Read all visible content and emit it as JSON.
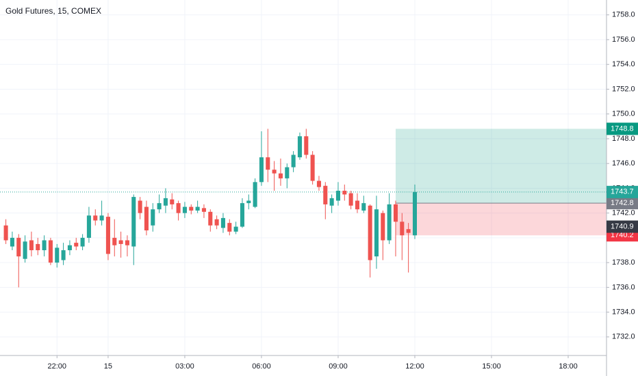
{
  "chart_data": {
    "type": "candlestick",
    "title": "Gold Futures, 15, COMEX",
    "x": [
      -4,
      -3.75,
      -3.5,
      -3.25,
      -3,
      -2.75,
      -2.5,
      -2.25,
      -2,
      -1.75,
      -1.5,
      -1.25,
      -1,
      -0.75,
      -0.5,
      -0.25,
      0,
      0.25,
      0.5,
      0.75,
      1,
      1.25,
      1.5,
      1.75,
      2,
      2.25,
      2.5,
      2.75,
      3,
      3.25,
      3.5,
      3.75,
      4,
      4.25,
      4.5,
      4.75,
      5,
      5.25,
      5.5,
      5.75,
      6,
      6.25,
      6.5,
      6.75,
      7,
      7.25,
      7.5,
      7.75,
      8,
      8.25,
      8.5,
      8.75,
      9,
      9.25,
      9.5,
      9.75,
      10,
      10.25,
      10.5,
      10.75,
      11,
      11.25,
      11.5,
      11.75,
      12
    ],
    "open": [
      1741,
      1739.3,
      1740,
      1738.3,
      1739.8,
      1739.5,
      1739,
      1739.8,
      1738,
      1738.2,
      1739,
      1739.6,
      1739.3,
      1740,
      1741.8,
      1741.4,
      1741.7,
      1740,
      1739.8,
      1739.8,
      1739.3,
      1743,
      1742.5,
      1741,
      1742.3,
      1742.6,
      1743.1,
      1742.8,
      1742,
      1742.5,
      1742.2,
      1742.4,
      1742.1,
      1741.5,
      1740.8,
      1741.2,
      1740.5,
      1740.9,
      1742.8,
      1742.5,
      1744.5,
      1746.5,
      1745.5,
      1745.2,
      1744.8,
      1745.7,
      1746.5,
      1748.2,
      1746.7,
      1744.6,
      1744.2,
      1742.6,
      1743,
      1743.8,
      1743.6,
      1743,
      1742.2,
      1742.6,
      1738.5,
      1742,
      1739.8,
      1742.7,
      1741.3,
      1740.7,
      1740.2
    ],
    "high": [
      1741.5,
      1740.5,
      1740.3,
      1740.2,
      1740.5,
      1740,
      1740.2,
      1740,
      1739.5,
      1739.6,
      1739.8,
      1740,
      1740.3,
      1742.5,
      1742.3,
      1743,
      1742,
      1741.5,
      1740.5,
      1740.2,
      1743.5,
      1743.3,
      1743,
      1742.8,
      1743.5,
      1744,
      1743.6,
      1743,
      1742.9,
      1742.7,
      1743,
      1742.7,
      1742.3,
      1741.8,
      1742,
      1741.5,
      1741.3,
      1743.2,
      1743.5,
      1744.8,
      1748.6,
      1748.8,
      1746.2,
      1746.4,
      1746,
      1747,
      1748.5,
      1748.8,
      1747,
      1745,
      1744.5,
      1743.5,
      1744.5,
      1744.3,
      1743.8,
      1743.6,
      1743.4,
      1742.7,
      1743.4,
      1742.2,
      1743.6,
      1743,
      1742,
      1741.2,
      1744.3
    ],
    "low": [
      1739.5,
      1739,
      1736,
      1738,
      1738.5,
      1738.6,
      1738.5,
      1737.8,
      1737.6,
      1737.8,
      1738.6,
      1739,
      1739,
      1739.6,
      1741,
      1741,
      1738.2,
      1738.5,
      1738.4,
      1738.5,
      1737.8,
      1741.5,
      1740.2,
      1740.5,
      1742,
      1742,
      1742.3,
      1741.4,
      1741.6,
      1741.9,
      1742,
      1741.6,
      1740.5,
      1740.7,
      1740.4,
      1740.2,
      1740.3,
      1740.8,
      1742.3,
      1742.4,
      1744.2,
      1744.5,
      1743.8,
      1744.2,
      1744,
      1745.3,
      1746.3,
      1746.4,
      1744.3,
      1743.8,
      1741.5,
      1742,
      1742.6,
      1743,
      1742.3,
      1742,
      1742,
      1736.8,
      1737.5,
      1738.2,
      1739.5,
      1738.5,
      1738.2,
      1737.2,
      1739.9
    ],
    "close": [
      1739.8,
      1740,
      1738.5,
      1739.7,
      1739,
      1739,
      1739.8,
      1738,
      1739.2,
      1739,
      1739.4,
      1739.3,
      1740,
      1741.8,
      1741.4,
      1741.8,
      1738.7,
      1739.4,
      1739.5,
      1739.4,
      1743.3,
      1742,
      1740.6,
      1742.3,
      1742.8,
      1743.2,
      1742.7,
      1742,
      1742.5,
      1742.2,
      1742.5,
      1742.1,
      1741,
      1741,
      1741.6,
      1740.5,
      1740.9,
      1742.8,
      1743,
      1744.5,
      1746.5,
      1745.5,
      1745.2,
      1744.8,
      1745.7,
      1746.7,
      1748.2,
      1746.7,
      1744.6,
      1744.1,
      1742.7,
      1743.2,
      1743.8,
      1743.5,
      1742.6,
      1742.3,
      1742.8,
      1738.2,
      1742.3,
      1739.8,
      1742.7,
      1741.3,
      1740.2,
      1740.4,
      1743.7
    ],
    "up_color": "#26a69a",
    "down_color": "#ef5350",
    "position": {
      "start_x": 11.25,
      "entry": 1742.8,
      "target": 1748.8,
      "stop": 1740.2,
      "entry_color": "#787b86",
      "target_color": "#089981",
      "stop_color": "#f23645"
    },
    "price_labels": [
      {
        "value": 1740.9,
        "color": "#363a45"
      }
    ],
    "xlim": [
      -4.23,
      19.5
    ],
    "ylim": [
      1730.5,
      1759.2
    ],
    "xticks": [
      {
        "value": -2,
        "label": "22:00"
      },
      {
        "value": 0,
        "label": "15"
      },
      {
        "value": 3,
        "label": "03:00"
      },
      {
        "value": 6,
        "label": "06:00"
      },
      {
        "value": 9,
        "label": "09:00"
      },
      {
        "value": 12,
        "label": "12:00"
      },
      {
        "value": 15,
        "label": "15:00"
      },
      {
        "value": 18,
        "label": "18:00"
      }
    ],
    "yticks": [
      {
        "value": 1732,
        "label": "1732.0"
      },
      {
        "value": 1734,
        "label": "1734.0"
      },
      {
        "value": 1736,
        "label": "1736.0"
      },
      {
        "value": 1738,
        "label": "1738.0"
      },
      {
        "value": 1740,
        "label": "1740.0"
      },
      {
        "value": 1742,
        "label": "1742.0"
      },
      {
        "value": 1744,
        "label": "1744.0"
      },
      {
        "value": 1746,
        "label": "1746.0"
      },
      {
        "value": 1748,
        "label": "1748.0"
      },
      {
        "value": 1750,
        "label": "1750.0"
      },
      {
        "value": 1752,
        "label": "1752.0"
      },
      {
        "value": 1754,
        "label": "1754.0"
      },
      {
        "value": 1756,
        "label": "1756.0"
      },
      {
        "value": 1758,
        "label": "1758.0"
      }
    ],
    "grid": true
  }
}
